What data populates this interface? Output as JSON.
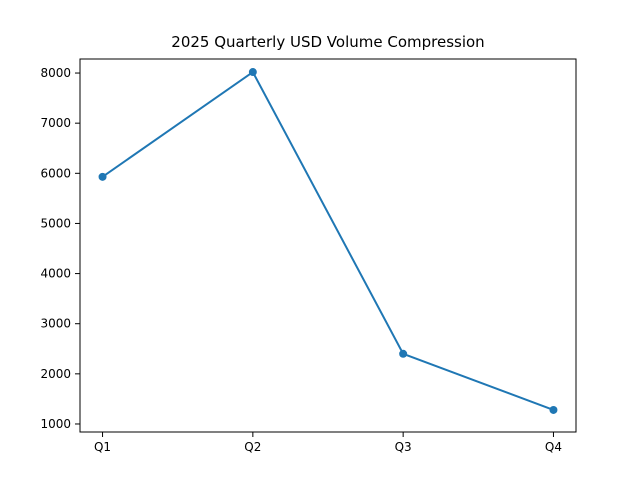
{
  "title": "2025 Quarterly USD Volume Compression",
  "chart_data": {
    "type": "line",
    "title": "2025 Quarterly USD Volume Compression",
    "categories": [
      "Q1",
      "Q2",
      "Q3",
      "Q4"
    ],
    "values": [
      5930,
      8020,
      2400,
      1280
    ],
    "xlabel": "",
    "ylabel": "",
    "ylim": [
      840,
      8280
    ],
    "yticks": [
      1000,
      2000,
      3000,
      4000,
      5000,
      6000,
      7000,
      8000
    ],
    "line_color": "#1f77b4",
    "marker": "circle",
    "grid": false,
    "legend_position": "none"
  }
}
